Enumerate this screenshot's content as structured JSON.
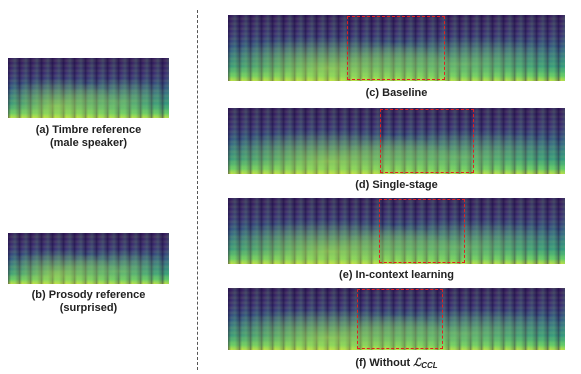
{
  "colors": {
    "box_border": "#e02020",
    "divider": "#555555"
  },
  "left": {
    "timbre": {
      "title_line1": "(a) Timbre reference",
      "title_line2": "(male speaker)"
    },
    "prosody": {
      "title_line1": "(b) Prosody reference",
      "title_line2": "(surprised)"
    }
  },
  "right": {
    "baseline": {
      "label": "(c) Baseline"
    },
    "single_stage": {
      "label": "(d) Single-stage"
    },
    "in_context": {
      "label": "(e) In-context learning"
    },
    "without_ccl": {
      "label_prefix": "(f) Without ",
      "symbol": "ℒ",
      "subscript": "CCL"
    }
  }
}
